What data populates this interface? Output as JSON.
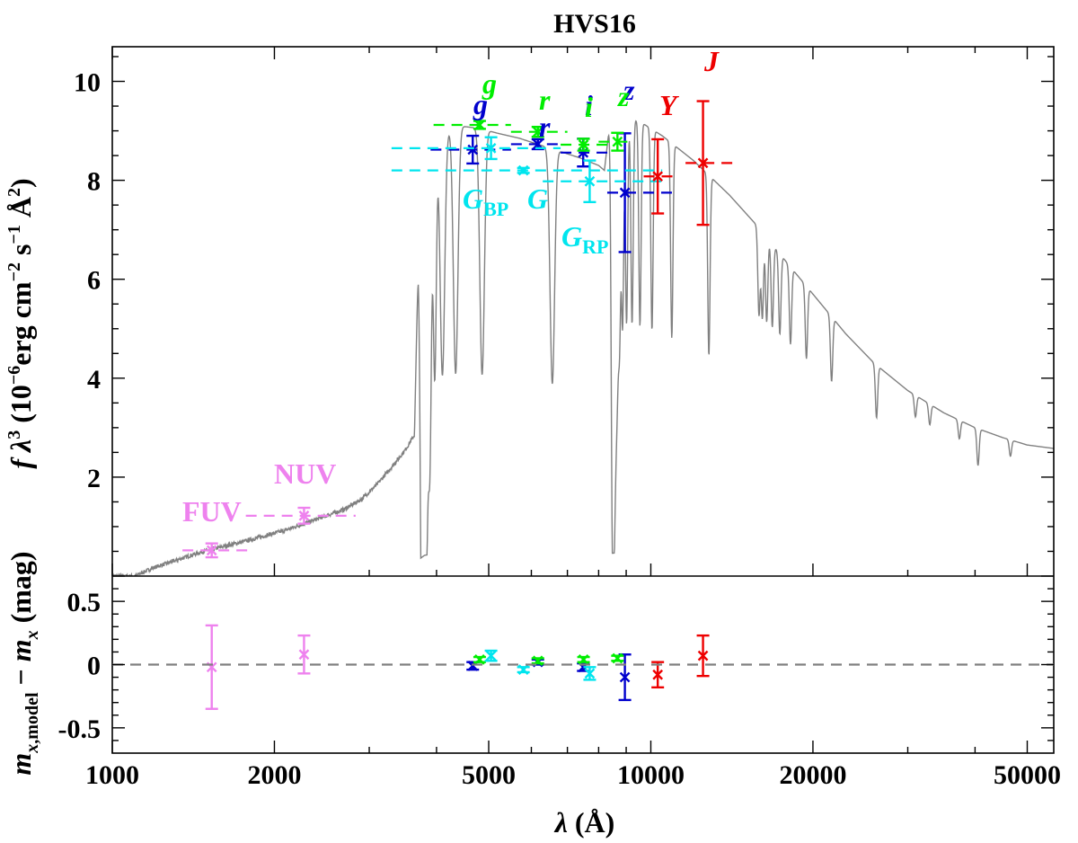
{
  "chart_data": {
    "type": "scatter",
    "title": "HVS16",
    "xlabel": "λ (Å)",
    "ylabel_top": "f λ³ (10⁻⁶erg cm⁻² s⁻¹ Å²)",
    "ylabel_bottom": "m_x,model − m_x (mag)",
    "xscale": "log",
    "xlim": [
      1000,
      56000
    ],
    "ylim_top": [
      0,
      10.7
    ],
    "ylim_bottom": [
      -0.7,
      0.7
    ],
    "x_ticks": [
      1000,
      2000,
      5000,
      10000,
      20000,
      50000
    ],
    "x_tick_labels": [
      "1000",
      "2000",
      "5000",
      "10000",
      "20000",
      "50000"
    ],
    "y_ticks_top": [
      2,
      4,
      6,
      8,
      10
    ],
    "y_tick_labels_top": [
      "2",
      "4",
      "6",
      "8",
      "10"
    ],
    "y_ticks_bottom": [
      -0.5,
      0,
      0.5
    ],
    "y_tick_labels_bottom": [
      "-0.5",
      "0",
      "0.5"
    ],
    "colors": {
      "model": "#808080",
      "galex": "#ee82ee",
      "gaia": "#00e5ee",
      "sdss": "#0000cd",
      "panstarrs": "#00ee00",
      "ukidss": "#ee0000",
      "zero_line": "#808080"
    },
    "labels": [
      {
        "text": "g",
        "color_key": "sdss",
        "style": "italic"
      },
      {
        "text": "g",
        "color_key": "panstarrs",
        "style": "italic"
      },
      {
        "text": "r",
        "color_key": "sdss",
        "style": "italic"
      },
      {
        "text": "r",
        "color_key": "panstarrs",
        "style": "italic"
      },
      {
        "text": "i",
        "color_key": "sdss",
        "style": "italic"
      },
      {
        "text": "i",
        "color_key": "panstarrs",
        "style": "italic"
      },
      {
        "text": "z",
        "color_key": "sdss",
        "style": "italic"
      },
      {
        "text": "z",
        "color_key": "panstarrs",
        "style": "italic"
      },
      {
        "text": "Y",
        "color_key": "ukidss",
        "style": "italic"
      },
      {
        "text": "J",
        "color_key": "ukidss",
        "style": "italic"
      },
      {
        "text": "G_BP",
        "color_key": "gaia",
        "style": "italic"
      },
      {
        "text": "G",
        "color_key": "gaia",
        "style": "italic"
      },
      {
        "text": "G_RP",
        "color_key": "gaia",
        "style": "italic"
      },
      {
        "text": "FUV",
        "color_key": "galex",
        "style": "upright"
      },
      {
        "text": "NUV",
        "color_key": "galex",
        "style": "upright"
      }
    ],
    "photometry": [
      {
        "name": "FUV",
        "color_key": "galex",
        "x": 1530,
        "xlo": 1350,
        "xhi": 1790,
        "y": 0.52,
        "yerr": 0.14,
        "res": -0.02,
        "res_err": 0.33
      },
      {
        "name": "NUV",
        "color_key": "galex",
        "x": 2270,
        "xlo": 1770,
        "xhi": 2830,
        "y": 1.22,
        "yerr": 0.16,
        "res": 0.08,
        "res_err": 0.15
      },
      {
        "name": "g_sdss",
        "color_key": "sdss",
        "x": 4670,
        "xlo": 3900,
        "xhi": 5500,
        "y": 8.62,
        "yerr": 0.28,
        "res": -0.01,
        "res_err": 0.03
      },
      {
        "name": "r_sdss",
        "color_key": "sdss",
        "x": 6170,
        "xlo": 5500,
        "xhi": 6900,
        "y": 8.73,
        "yerr": 0.1,
        "res": 0.02,
        "res_err": 0.02
      },
      {
        "name": "i_sdss",
        "color_key": "sdss",
        "x": 7490,
        "xlo": 6800,
        "xhi": 8400,
        "y": 8.56,
        "yerr": 0.28,
        "res": -0.02,
        "res_err": 0.03
      },
      {
        "name": "z_sdss",
        "color_key": "sdss",
        "x": 8950,
        "xlo": 8300,
        "xhi": 11000,
        "y": 7.75,
        "yerr": 1.2,
        "res": -0.1,
        "res_err": 0.18
      },
      {
        "name": "g_ps1",
        "color_key": "panstarrs",
        "x": 4810,
        "xlo": 3950,
        "xhi": 5500,
        "y": 9.12,
        "yerr": 0.08,
        "res": 0.04,
        "res_err": 0.02
      },
      {
        "name": "r_ps1",
        "color_key": "panstarrs",
        "x": 6170,
        "xlo": 5500,
        "xhi": 7000,
        "y": 8.98,
        "yerr": 0.1,
        "res": 0.03,
        "res_err": 0.02
      },
      {
        "name": "i_ps1",
        "color_key": "panstarrs",
        "x": 7500,
        "xlo": 6800,
        "xhi": 8300,
        "y": 8.72,
        "yerr": 0.12,
        "res": 0.04,
        "res_err": 0.02
      },
      {
        "name": "z_ps1",
        "color_key": "panstarrs",
        "x": 8670,
        "xlo": 8000,
        "xhi": 9300,
        "y": 8.78,
        "yerr": 0.18,
        "res": 0.05,
        "res_err": 0.02
      },
      {
        "name": "G_BP",
        "color_key": "gaia",
        "x": 5050,
        "xlo": 3300,
        "xhi": 6800,
        "y": 8.65,
        "yerr": 0.22,
        "res": 0.07,
        "res_err": 0.04
      },
      {
        "name": "G",
        "color_key": "gaia",
        "x": 5800,
        "xlo": 3300,
        "xhi": 10500,
        "y": 8.2,
        "yerr": 0.05,
        "res": -0.04,
        "res_err": 0.02
      },
      {
        "name": "G_RP",
        "color_key": "gaia",
        "x": 7700,
        "xlo": 6300,
        "xhi": 10500,
        "y": 7.98,
        "yerr": 0.42,
        "res": -0.07,
        "res_err": 0.05
      },
      {
        "name": "Y",
        "color_key": "ukidss",
        "x": 10300,
        "xlo": 9700,
        "xhi": 11000,
        "y": 8.08,
        "yerr": 0.75,
        "res": -0.08,
        "res_err": 0.1
      },
      {
        "name": "J",
        "color_key": "ukidss",
        "x": 12500,
        "xlo": 11600,
        "xhi": 14600,
        "y": 8.35,
        "yerr": 1.25,
        "res": 0.07,
        "res_err": 0.16
      }
    ],
    "model_spectrum": {
      "description_points": [
        [
          1000,
          0.0
        ],
        [
          1100,
          0.0
        ],
        [
          1200,
          0.18
        ],
        [
          1300,
          0.3
        ],
        [
          1400,
          0.42
        ],
        [
          1500,
          0.52
        ],
        [
          1700,
          0.66
        ],
        [
          1900,
          0.8
        ],
        [
          2100,
          0.93
        ],
        [
          2300,
          1.08
        ],
        [
          2500,
          1.22
        ],
        [
          2700,
          1.35
        ],
        [
          2900,
          1.55
        ],
        [
          3100,
          1.85
        ],
        [
          3300,
          2.2
        ],
        [
          3500,
          2.55
        ],
        [
          3640,
          2.85
        ],
        [
          3700,
          6.5
        ],
        [
          3800,
          8.4
        ],
        [
          3900,
          8.8
        ],
        [
          4100,
          9.0
        ],
        [
          4400,
          9.1
        ],
        [
          4800,
          9.05
        ],
        [
          5200,
          8.95
        ],
        [
          5700,
          8.85
        ],
        [
          6200,
          8.72
        ],
        [
          6800,
          8.58
        ],
        [
          7400,
          8.45
        ],
        [
          8000,
          8.3
        ],
        [
          8200,
          8.2
        ],
        [
          8300,
          8.7
        ],
        [
          8400,
          9.25
        ],
        [
          8800,
          9.32
        ],
        [
          9500,
          9.2
        ],
        [
          10500,
          8.9
        ],
        [
          12000,
          8.4
        ],
        [
          14000,
          7.7
        ],
        [
          16000,
          7.0
        ],
        [
          18000,
          6.3
        ],
        [
          20000,
          5.7
        ],
        [
          23000,
          4.9
        ],
        [
          26000,
          4.3
        ],
        [
          30000,
          3.75
        ],
        [
          35000,
          3.3
        ],
        [
          40000,
          3.0
        ],
        [
          45000,
          2.8
        ],
        [
          50000,
          2.65
        ],
        [
          56000,
          2.58
        ]
      ],
      "balmer_lines": [
        3750,
        3771,
        3798,
        3835,
        3889,
        3970,
        4102,
        4341,
        4861,
        6563
      ],
      "paschen_lines": [
        8467,
        8502,
        8545,
        8598,
        8665,
        8750,
        8863,
        9015,
        9229,
        9546,
        10049,
        10938,
        12818
      ],
      "brackett_lines": [
        15880,
        16110,
        16410,
        16810,
        17360,
        18170,
        19450,
        21660,
        26250,
        40510
      ],
      "pfund_lines": [
        31000,
        32960,
        37400,
        46530
      ]
    }
  }
}
